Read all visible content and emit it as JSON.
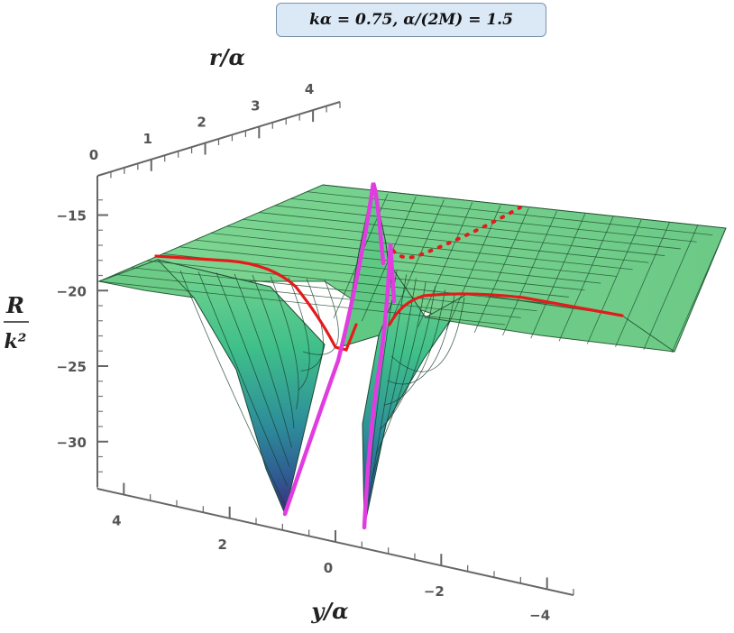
{
  "parameters_label": "kα = 0.75,   α/(2M) = 1.5",
  "chart_data": {
    "type": "surface3d",
    "title": "",
    "x_axis": {
      "label": "y/α",
      "ticks": [
        4,
        2,
        0,
        -2,
        -4
      ],
      "range": [
        -4.5,
        4.5
      ]
    },
    "y_axis": {
      "label": "r/α",
      "ticks": [
        0,
        1,
        2,
        3,
        4
      ],
      "range": [
        0,
        4.5
      ]
    },
    "z_axis": {
      "label_numerator": "R",
      "label_denominator": "k²",
      "ticks": [
        -15,
        -20,
        -25,
        -30
      ],
      "range": [
        -33,
        -13
      ]
    },
    "parameters": {
      "k_alpha": 0.75,
      "alpha_over_2M": 1.5
    },
    "surface": {
      "plateau_value": -20,
      "minimum_value": -33,
      "peak_value": -14,
      "colormap": [
        "#3a2d7a",
        "#2c6fa0",
        "#2aa78a",
        "#67d080",
        "#7fd690"
      ],
      "mesh_lines": "on"
    },
    "curves": [
      {
        "name": "",
        "color": "#e41b1b",
        "style": "solid",
        "description_values": "front edge profile"
      },
      {
        "name": "",
        "color": "#e41b1b",
        "style": "dotted",
        "description_values": "ridge profile"
      },
      {
        "name": "",
        "color": "#e03ce0",
        "style": "solid",
        "description_values": "boundary profile"
      }
    ]
  }
}
